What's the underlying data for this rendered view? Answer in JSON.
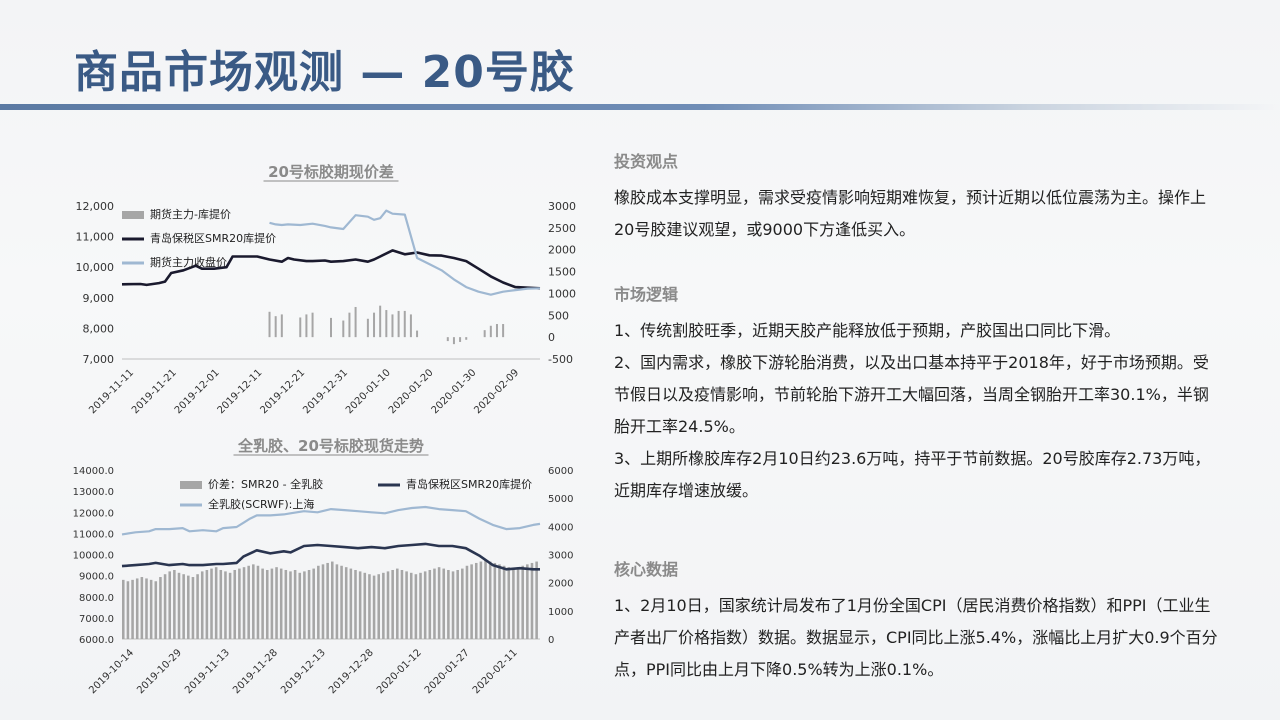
{
  "page": {
    "title": "商品市场观测 — 20号胶"
  },
  "sections": [
    {
      "heading": "投资观点",
      "paragraphs": [
        "橡胶成本支撑明显，需求受疫情影响短期难恢复，预计近期以低位震荡为主。操作上20号胶建议观望，或9000下方逢低买入。"
      ]
    },
    {
      "heading": "市场逻辑",
      "paragraphs": [
        "1、传统割胶旺季，近期天胶产能释放低于预期，产胶国出口同比下滑。",
        "2、国内需求，橡胶下游轮胎消费，以及出口基本持平于2018年，好于市场预期。受节假日以及疫情影响，节前轮胎下游开工大幅回落，当周全钢胎开工率30.1%，半钢胎开工率24.5%。",
        "3、上期所橡胶库存2月10日约23.6万吨，持平于节前数据。20号胶库存2.73万吨，近期库存增速放缓。"
      ]
    },
    {
      "heading": "核心数据",
      "paragraphs": [
        "1、2月10日，国家统计局发布了1月份全国CPI（居民消费价格指数）和PPI（工业生产者出厂价格指数）数据。数据显示，CPI同比上涨5.4%，涨幅比上月扩大0.9个百分点，PPI同比由上月下降0.5%转为上涨0.1%。"
      ]
    }
  ],
  "chart_data": [
    {
      "type": "line",
      "title": "20号标胶期现价差",
      "x_labels": [
        "2019-11-11",
        "2019-11-21",
        "2019-12-01",
        "2019-12-11",
        "2019-12-21",
        "2019-12-31",
        "2020-01-10",
        "2020-01-20",
        "2020-01-30",
        "2020-02-09"
      ],
      "left_axis": {
        "range": [
          7000,
          12000
        ],
        "ticks": [
          "12,000",
          "11,000",
          "10,000",
          "9,000",
          "8,000",
          "7,000"
        ]
      },
      "right_axis": {
        "range": [
          -500,
          3000
        ],
        "ticks": [
          "3000",
          "2500",
          "2000",
          "1500",
          "1000",
          "500",
          "0",
          "-500"
        ]
      },
      "legend_placement": "top-left",
      "series": [
        {
          "name": "期货主力-库提价",
          "kind": "bar",
          "axis": "right",
          "color": "#a6a6a6",
          "points": [
            [
              24,
              580
            ],
            [
              25,
              480
            ],
            [
              26,
              520
            ],
            [
              29,
              450
            ],
            [
              30,
              520
            ],
            [
              31,
              560
            ],
            [
              34,
              440
            ],
            [
              36,
              380
            ],
            [
              37,
              560
            ],
            [
              38,
              690
            ],
            [
              40,
              420
            ],
            [
              41,
              560
            ],
            [
              42,
              720
            ],
            [
              43,
              620
            ],
            [
              44,
              520
            ],
            [
              45,
              600
            ],
            [
              46,
              600
            ],
            [
              47,
              520
            ],
            [
              48,
              150
            ],
            [
              53,
              -90
            ],
            [
              54,
              -160
            ],
            [
              55,
              -110
            ],
            [
              56,
              -60
            ],
            [
              59,
              160
            ],
            [
              60,
              260
            ],
            [
              61,
              300
            ],
            [
              62,
              300
            ]
          ]
        },
        {
          "name": "青岛保税区SMR20库提价",
          "kind": "line",
          "axis": "left",
          "color": "#1a1a2e",
          "points": [
            [
              0,
              9440
            ],
            [
              3,
              9450
            ],
            [
              4,
              9420
            ],
            [
              6,
              9480
            ],
            [
              7,
              9530
            ],
            [
              8,
              9810
            ],
            [
              10,
              9900
            ],
            [
              12,
              10050
            ],
            [
              13,
              9950
            ],
            [
              15,
              9950
            ],
            [
              17,
              10000
            ],
            [
              18,
              10350
            ],
            [
              22,
              10350
            ],
            [
              24,
              10250
            ],
            [
              26,
              10180
            ],
            [
              27,
              10300
            ],
            [
              28,
              10250
            ],
            [
              30,
              10200
            ],
            [
              31,
              10200
            ],
            [
              33,
              10220
            ],
            [
              34,
              10180
            ],
            [
              36,
              10200
            ],
            [
              38,
              10250
            ],
            [
              40,
              10180
            ],
            [
              41,
              10250
            ],
            [
              42,
              10350
            ],
            [
              44,
              10550
            ],
            [
              46,
              10420
            ],
            [
              48,
              10480
            ],
            [
              50,
              10390
            ],
            [
              52,
              10380
            ],
            [
              54,
              10300
            ],
            [
              56,
              10200
            ],
            [
              58,
              9950
            ],
            [
              60,
              9700
            ],
            [
              62,
              9500
            ],
            [
              64,
              9350
            ],
            [
              66,
              9330
            ],
            [
              68,
              9310
            ]
          ]
        },
        {
          "name": "期货主力收盘价",
          "kind": "line",
          "axis": "left",
          "color": "#9fb8d2",
          "points": [
            [
              24,
              11450
            ],
            [
              25,
              11400
            ],
            [
              26,
              11380
            ],
            [
              27,
              11400
            ],
            [
              29,
              11380
            ],
            [
              31,
              11420
            ],
            [
              33,
              11350
            ],
            [
              34,
              11300
            ],
            [
              36,
              11250
            ],
            [
              38,
              11700
            ],
            [
              40,
              11650
            ],
            [
              41,
              11550
            ],
            [
              42,
              11600
            ],
            [
              43,
              11850
            ],
            [
              44,
              11750
            ],
            [
              46,
              11720
            ],
            [
              48,
              10300
            ],
            [
              50,
              10100
            ],
            [
              52,
              9900
            ],
            [
              54,
              9600
            ],
            [
              56,
              9350
            ],
            [
              58,
              9200
            ],
            [
              60,
              9100
            ],
            [
              62,
              9200
            ],
            [
              64,
              9250
            ],
            [
              66,
              9300
            ],
            [
              68,
              9310
            ]
          ]
        }
      ]
    },
    {
      "type": "line",
      "title": "全乳胶、20号标胶现货走势",
      "x_labels": [
        "2019-10-14",
        "2019-10-29",
        "2019-11-13",
        "2019-11-28",
        "2019-12-13",
        "2019-12-28",
        "2020-01-12",
        "2020-01-27",
        "2020-02-11"
      ],
      "left_axis": {
        "range": [
          6000,
          14000
        ],
        "ticks": [
          "14000.0",
          "13000.0",
          "12000.0",
          "11000.0",
          "10000.0",
          "9000.0",
          "8000.0",
          "7000.0",
          "6000.0"
        ]
      },
      "right_axis": {
        "range": [
          0,
          6000
        ],
        "ticks": [
          "6000",
          "5000",
          "4000",
          "3000",
          "2000",
          "1000",
          "0"
        ]
      },
      "legend_placement": "top",
      "series": [
        {
          "name": "价差：SMR20 - 全乳胶",
          "kind": "bar",
          "axis": "right",
          "color": "#a6a6a6",
          "values": [
            2100,
            2050,
            2100,
            2150,
            2200,
            2150,
            2100,
            2050,
            2200,
            2300,
            2400,
            2450,
            2350,
            2300,
            2250,
            2200,
            2300,
            2400,
            2450,
            2500,
            2550,
            2450,
            2400,
            2350,
            2450,
            2500,
            2550,
            2600,
            2650,
            2600,
            2500,
            2450,
            2500,
            2550,
            2500,
            2450,
            2400,
            2450,
            2350,
            2400,
            2450,
            2500,
            2600,
            2650,
            2700,
            2750,
            2650,
            2600,
            2550,
            2500,
            2450,
            2400,
            2350,
            2300,
            2250,
            2300,
            2350,
            2400,
            2450,
            2500,
            2450,
            2400,
            2350,
            2300,
            2350,
            2400,
            2450,
            2500,
            2550,
            2500,
            2450,
            2400,
            2450,
            2500,
            2600,
            2650,
            2700,
            2750,
            2800,
            2750,
            2700,
            2650,
            2600,
            2550,
            2500,
            2550,
            2600,
            2650,
            2700,
            2750
          ]
        },
        {
          "name": "青岛保税区SMR20库提价",
          "kind": "line",
          "axis": "left",
          "color": "#2a3550",
          "points": [
            [
              0,
              9450
            ],
            [
              4,
              9500
            ],
            [
              8,
              9550
            ],
            [
              10,
              9600
            ],
            [
              14,
              9500
            ],
            [
              18,
              9550
            ],
            [
              20,
              9500
            ],
            [
              24,
              9500
            ],
            [
              28,
              9550
            ],
            [
              30,
              9550
            ],
            [
              34,
              9600
            ],
            [
              36,
              9900
            ],
            [
              38,
              10050
            ],
            [
              40,
              10200
            ],
            [
              44,
              10050
            ],
            [
              48,
              10150
            ],
            [
              50,
              10100
            ],
            [
              54,
              10400
            ],
            [
              58,
              10450
            ],
            [
              62,
              10400
            ],
            [
              66,
              10350
            ],
            [
              70,
              10300
            ],
            [
              74,
              10350
            ],
            [
              78,
              10300
            ],
            [
              82,
              10400
            ],
            [
              86,
              10450
            ],
            [
              90,
              10500
            ],
            [
              94,
              10400
            ],
            [
              98,
              10400
            ],
            [
              102,
              10300
            ],
            [
              106,
              9950
            ],
            [
              110,
              9500
            ],
            [
              114,
              9300
            ],
            [
              118,
              9350
            ],
            [
              122,
              9300
            ],
            [
              124,
              9300
            ]
          ]
        },
        {
          "name": "全乳胶(SCRWF):上海",
          "kind": "line",
          "axis": "left",
          "color": "#9fb8d2",
          "points": [
            [
              0,
              10950
            ],
            [
              4,
              11050
            ],
            [
              8,
              11100
            ],
            [
              10,
              11200
            ],
            [
              14,
              11200
            ],
            [
              18,
              11250
            ],
            [
              20,
              11100
            ],
            [
              24,
              11150
            ],
            [
              28,
              11100
            ],
            [
              30,
              11250
            ],
            [
              34,
              11300
            ],
            [
              36,
              11500
            ],
            [
              38,
              11700
            ],
            [
              40,
              11850
            ],
            [
              44,
              11850
            ],
            [
              48,
              11900
            ],
            [
              50,
              11950
            ],
            [
              54,
              12050
            ],
            [
              58,
              12000
            ],
            [
              62,
              12150
            ],
            [
              66,
              12100
            ],
            [
              70,
              12050
            ],
            [
              74,
              12000
            ],
            [
              78,
              11950
            ],
            [
              82,
              12100
            ],
            [
              86,
              12200
            ],
            [
              90,
              12250
            ],
            [
              94,
              12150
            ],
            [
              98,
              12100
            ],
            [
              102,
              12050
            ],
            [
              106,
              11700
            ],
            [
              110,
              11400
            ],
            [
              114,
              11200
            ],
            [
              118,
              11250
            ],
            [
              122,
              11400
            ],
            [
              124,
              11450
            ]
          ]
        }
      ]
    }
  ]
}
